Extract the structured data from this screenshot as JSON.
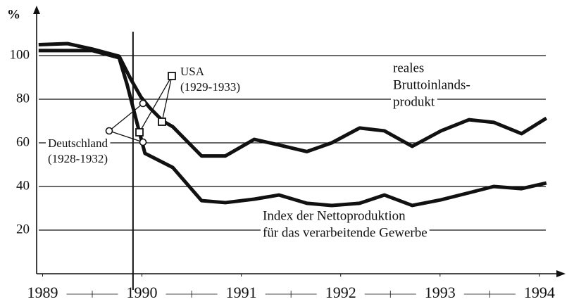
{
  "chart_data": {
    "type": "line",
    "y_label": "%",
    "xlim": [
      1988.94,
      1994.1
    ],
    "ylim": [
      0,
      120
    ],
    "xticks": [
      1989,
      1990,
      1991,
      1992,
      1993,
      1994
    ],
    "yticks": [
      20,
      40,
      60,
      80,
      100
    ],
    "grid": true,
    "vline_x": 1989.91,
    "series": [
      {
        "name": "reales Bruttoinlandsprodukt",
        "color": "#111111",
        "x": [
          1988.96,
          1989.25,
          1989.5,
          1989.77,
          1989.89,
          1989.99,
          1990.08,
          1990.21,
          1990.31,
          1990.6,
          1990.84,
          1991.13,
          1991.38,
          1991.66,
          1991.91,
          1992.19,
          1992.44,
          1992.72,
          1993.01,
          1993.29,
          1993.54,
          1993.82,
          1994.07
        ],
        "values": [
          105,
          105.5,
          103,
          99.7,
          89,
          81,
          76,
          70,
          67.4,
          54,
          54,
          61.6,
          59,
          56,
          60,
          66.8,
          65.5,
          58.4,
          65.5,
          70.6,
          69.4,
          64.2,
          71.3
        ]
      },
      {
        "name": "Index der Nettoproduktion für das verarbeitende Gewerbe",
        "color": "#111111",
        "x": [
          1988.96,
          1989.5,
          1989.77,
          1989.85,
          1989.96,
          1990.03,
          1990.31,
          1990.6,
          1990.84,
          1991.13,
          1991.38,
          1991.66,
          1991.91,
          1992.19,
          1992.44,
          1992.72,
          1993.01,
          1993.29,
          1993.54,
          1993.82,
          1994.07
        ],
        "values": [
          102.3,
          102.3,
          99,
          86.8,
          67.4,
          55.2,
          48.7,
          33.5,
          32.6,
          34.2,
          36.1,
          32.3,
          31.3,
          32.3,
          36.1,
          31.3,
          33.9,
          37.1,
          40,
          39,
          41.6
        ]
      }
    ],
    "annotations": {
      "gdp": [
        "reales",
        "Bruttoinlands-",
        "produkt"
      ],
      "production": [
        "Index der Nettoproduktion",
        "für das verarbeitende Gewerbe"
      ],
      "usa": [
        "USA",
        "(1929-1933)"
      ],
      "germany": [
        "Deutschland",
        "(1928-1932)"
      ]
    }
  }
}
